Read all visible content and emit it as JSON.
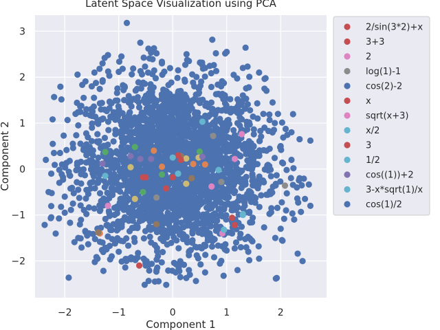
{
  "chart_data": {
    "type": "scatter",
    "title": "Latent Space Visualization using PCA",
    "xlabel": "Component 1",
    "ylabel": "Component 2",
    "xlim": [
      -2.55,
      2.85
    ],
    "ylim": [
      -2.8,
      3.35
    ],
    "xticks": [
      -2,
      -1,
      0,
      1,
      2
    ],
    "yticks": [
      -2,
      -1,
      0,
      1,
      2,
      3
    ],
    "xtick_labels": [
      "−2",
      "−1",
      "0",
      "1",
      "2"
    ],
    "ytick_labels": [
      "−2",
      "−1",
      "0",
      "1",
      "2",
      "3"
    ],
    "grid": true,
    "legend_position": "outside-right",
    "background_points": {
      "series": "cos(1)/2",
      "note_count": "dense cloud",
      "points": [
        [
          -0.85,
          3.18
        ],
        [
          -0.6,
          2.75
        ],
        [
          -0.45,
          2.62
        ],
        [
          -0.3,
          2.52
        ],
        [
          -1.2,
          2.48
        ],
        [
          0.8,
          2.52
        ],
        [
          1.0,
          2.55
        ],
        [
          -0.2,
          2.3
        ],
        [
          0.3,
          2.35
        ],
        [
          -1.45,
          2.1
        ],
        [
          -1.3,
          2.3
        ],
        [
          1.3,
          2.2
        ],
        [
          1.6,
          2.1
        ],
        [
          -0.95,
          2.45
        ],
        [
          -1.5,
          1.8
        ],
        [
          -1.65,
          1.55
        ],
        [
          1.7,
          1.75
        ],
        [
          1.85,
          1.45
        ],
        [
          -1.3,
          1.9
        ],
        [
          0.6,
          2.2
        ],
        [
          0.1,
          2.15
        ],
        [
          -1.8,
          1.2
        ],
        [
          1.95,
          1.2
        ],
        [
          2.2,
          0.8
        ],
        [
          2.35,
          0.65
        ],
        [
          2.55,
          0.62
        ],
        [
          -1.75,
          0.95
        ],
        [
          -1.6,
          1.3
        ],
        [
          -2.35,
          0.2
        ],
        [
          -2.2,
          0.35
        ],
        [
          -2.05,
          0.1
        ],
        [
          -2.25,
          -0.1
        ],
        [
          -2.3,
          -0.5
        ],
        [
          -2.1,
          -0.3
        ],
        [
          2.2,
          0.2
        ],
        [
          2.35,
          -0.2
        ],
        [
          2.55,
          -0.8
        ],
        [
          2.45,
          -0.65
        ],
        [
          2.3,
          -0.4
        ],
        [
          -2.25,
          -1.05
        ],
        [
          -2.0,
          -0.95
        ],
        [
          2.25,
          -1.1
        ],
        [
          -1.75,
          -1.5
        ],
        [
          -1.55,
          -1.4
        ],
        [
          1.9,
          -1.5
        ],
        [
          2.0,
          -1.3
        ],
        [
          -1.0,
          -1.8
        ],
        [
          -0.7,
          -1.95
        ],
        [
          -0.3,
          -2.2
        ],
        [
          -0.12,
          -2.52
        ],
        [
          0.3,
          -2.2
        ],
        [
          0.6,
          -2.25
        ],
        [
          1.2,
          -2.2
        ],
        [
          1.6,
          -1.95
        ],
        [
          -0.5,
          -2.1
        ],
        [
          0.9,
          -2.0
        ],
        [
          -1.3,
          -1.6
        ],
        [
          1.4,
          -1.8
        ],
        [
          -1.85,
          0.55
        ],
        [
          1.7,
          0.9
        ],
        [
          2.0,
          0.5
        ],
        [
          -2.0,
          -0.6
        ],
        [
          2.1,
          -0.9
        ],
        [
          -1.55,
          0.45
        ],
        [
          1.5,
          0.5
        ],
        [
          -0.2,
          1.6
        ],
        [
          0.4,
          1.8
        ],
        [
          -0.9,
          1.5
        ],
        [
          0.9,
          1.6
        ],
        [
          1.2,
          1.0
        ],
        [
          -1.0,
          0.8
        ],
        [
          0.0,
          1.1
        ],
        [
          -0.4,
          -1.6
        ],
        [
          0.5,
          -1.7
        ],
        [
          -1.1,
          -1.2
        ],
        [
          1.1,
          -1.4
        ],
        [
          0.2,
          0.5
        ],
        [
          -0.6,
          0.1
        ],
        [
          0.7,
          -0.5
        ],
        [
          -0.3,
          -0.6
        ],
        [
          0.4,
          0.9
        ],
        [
          -1.4,
          -0.3
        ],
        [
          1.6,
          -0.2
        ],
        [
          -0.8,
          -0.9
        ]
      ]
    },
    "series": [
      {
        "name": "2/sin(3*2)+x",
        "color": "#c44e52",
        "points": [
          [
            -0.62,
            -2.1
          ],
          [
            0.0,
            -0.18
          ],
          [
            -0.55,
            -0.18
          ]
        ]
      },
      {
        "name": "3+3",
        "color": "#c44e52",
        "points": [
          [
            1.15,
            -1.22
          ],
          [
            -0.12,
            -0.42
          ]
        ]
      },
      {
        "name": "2",
        "color": "#dd84c3",
        "points": [
          [
            1.28,
            0.76
          ],
          [
            -1.2,
            -0.8
          ],
          [
            0.72,
            -0.38
          ]
        ]
      },
      {
        "name": "log(1)-1",
        "color": "#8c8c8c",
        "points": [
          [
            0.75,
            0.72
          ],
          [
            -0.3,
            -0.62
          ],
          [
            0.9,
            -0.28
          ],
          [
            2.08,
            -0.36
          ]
        ]
      },
      {
        "name": "cos(2)-2",
        "color": "#4c72b0",
        "points": []
      },
      {
        "name": "x",
        "color": "#c44e52",
        "points": [
          [
            -0.5,
            -0.18
          ],
          [
            0.1,
            0.3
          ]
        ]
      },
      {
        "name": "sqrt(x+3)",
        "color": "#dd84c3",
        "points": [
          [
            1.15,
            0.22
          ],
          [
            0.92,
            -1.4
          ]
        ]
      },
      {
        "name": "x/2",
        "color": "#64b5cd",
        "points": [
          [
            0.55,
            1.03
          ],
          [
            0.85,
            -0.02
          ],
          [
            1.3,
            -1.0
          ],
          [
            -1.25,
            -0.15
          ]
        ]
      },
      {
        "name": "3",
        "color": "#c44e52",
        "points": [
          [
            1.1,
            -1.06
          ],
          [
            0.15,
            0.2
          ]
        ]
      },
      {
        "name": "1/2",
        "color": "#64b5cd",
        "points": [
          [
            0.95,
            -1.32
          ],
          [
            0.0,
            0.25
          ]
        ]
      },
      {
        "name": "cos((1))+2",
        "color": "#8172b2",
        "points": [
          [
            -1.3,
            0.12
          ],
          [
            -0.78,
            0.28
          ],
          [
            0.55,
            0.27
          ],
          [
            -0.6,
            0.22
          ],
          [
            -0.4,
            0.22
          ]
        ]
      },
      {
        "name": "3-x*sqrt(1)/x",
        "color": "#64b5cd",
        "points": [
          [
            1.3,
            -0.98
          ],
          [
            0.1,
            -0.1
          ]
        ]
      },
      {
        "name": "cos(1)/2",
        "color": "#4c72b0",
        "points": []
      }
    ],
    "extra_points": [
      {
        "color": "#55a868",
        "points": [
          [
            -1.25,
            0.37
          ],
          [
            -0.7,
            0.48
          ],
          [
            0.5,
            0.38
          ],
          [
            -0.2,
            -0.12
          ],
          [
            -0.55,
            -0.5
          ]
        ]
      },
      {
        "color": "#dd8452",
        "points": [
          [
            -0.35,
            0.4
          ],
          [
            -0.2,
            0.05
          ],
          [
            0.38,
            0.11
          ],
          [
            0.6,
            0.1
          ],
          [
            -1.35,
            -1.4
          ],
          [
            0.15,
            0.28
          ]
        ]
      },
      {
        "color": "#ccb974",
        "points": [
          [
            -0.78,
            0.04
          ],
          [
            -0.7,
            -0.65
          ],
          [
            0.25,
            0.23
          ],
          [
            0.25,
            -0.32
          ],
          [
            0.48,
            0.25
          ]
        ]
      },
      {
        "color": "#937860",
        "points": [
          [
            0.15,
            0.28
          ],
          [
            0.35,
            -0.2
          ],
          [
            -0.3,
            -1.2
          ],
          [
            -1.38,
            -1.38
          ]
        ]
      }
    ]
  }
}
